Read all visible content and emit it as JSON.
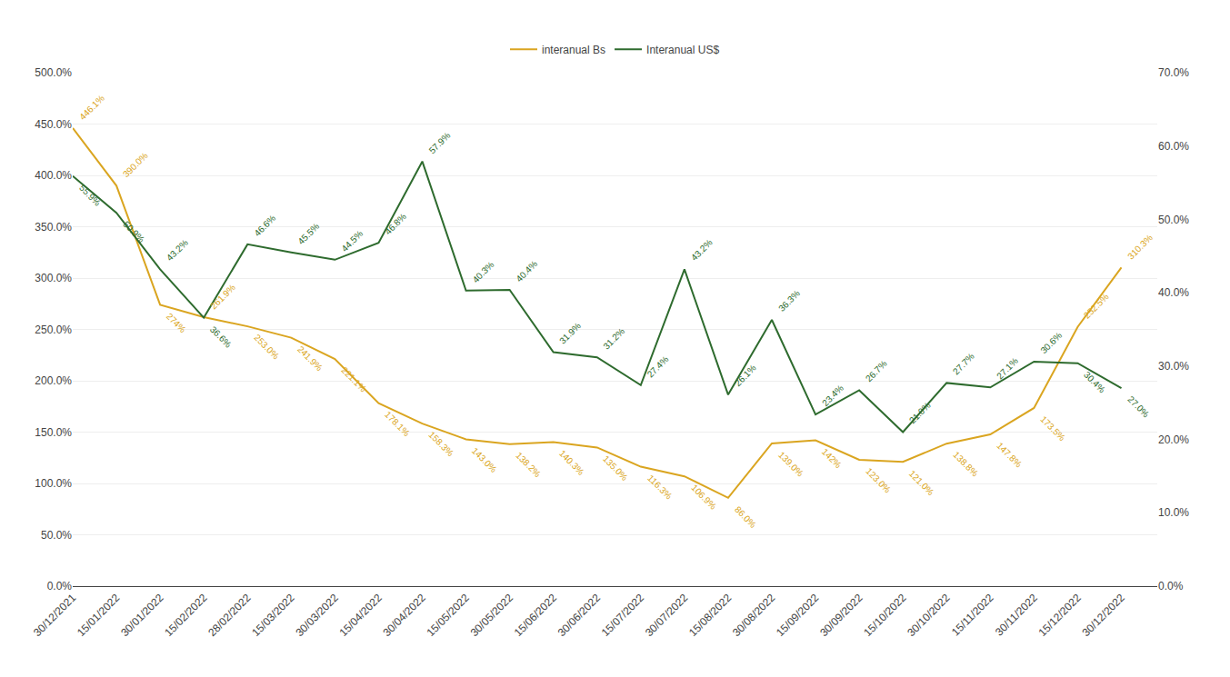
{
  "chart_data": {
    "type": "line",
    "categories": [
      "30/12/2021",
      "15/01/2022",
      "30/01/2022",
      "15/02/2022",
      "28/02/2022",
      "15/03/2022",
      "30/03/2022",
      "15/04/2022",
      "30/04/2022",
      "15/05/2022",
      "30/05/2022",
      "15/06/2022",
      "30/06/2022",
      "15/07/2022",
      "30/07/2022",
      "15/08/2022",
      "30/08/2022",
      "15/09/2022",
      "30/09/2022",
      "15/10/2022",
      "30/10/2022",
      "15/11/2022",
      "30/11/2022",
      "15/12/2022",
      "30/12/2022"
    ],
    "series": [
      {
        "name": "interanual Bs",
        "color": "#DAA520",
        "values": [
          446.1,
          390.0,
          274.0,
          261.9,
          253.0,
          241.9,
          221.1,
          178.1,
          158.3,
          143.0,
          138.2,
          140.3,
          135.0,
          116.3,
          106.9,
          86.0,
          139.0,
          142.0,
          123.0,
          121.0,
          138.8,
          147.8,
          173.5,
          252.5,
          310.3
        ],
        "value_labels": [
          "446.1%",
          "390.0%",
          "274%",
          "261.9%",
          "253.0%",
          "241.9%",
          "221.1%",
          "178.1%",
          "158.3%",
          "143.0%",
          "138.2%",
          "140.3%",
          "135.0%",
          "116.3%",
          "106.9%",
          "86.0%",
          "139.0%",
          "142%",
          "123.0%",
          "121.0%",
          "138.8%",
          "147.8%",
          "173.5%",
          "252.5%",
          "310.3%"
        ]
      },
      {
        "name": "Interanual US$",
        "color": "#2E6B2E",
        "axis": "y2",
        "values": [
          55.9,
          50.9,
          43.2,
          36.6,
          46.6,
          45.5,
          44.5,
          46.8,
          57.9,
          40.3,
          40.4,
          31.9,
          31.2,
          27.4,
          43.2,
          26.1,
          36.3,
          23.4,
          26.7,
          21.0,
          27.7,
          27.1,
          30.6,
          30.4,
          27.0
        ],
        "value_labels": [
          "55.9%",
          "50.9%",
          "43.2%",
          "36.6%",
          "46.6%",
          "45.5%",
          "44.5%",
          "46.8%",
          "57.9%",
          "40.3%",
          "40.4%",
          "31.9%",
          "31.2%",
          "27.4%",
          "43.2%",
          "26.1%",
          "36.3%",
          "23.4%",
          "26.7%",
          "21.0%",
          "27.7%",
          "27.1%",
          "30.6%",
          "30.4%",
          "27.0%"
        ]
      }
    ],
    "ylim": [
      0,
      500
    ],
    "yticks": [
      {
        "value": 0,
        "label": "0.0%"
      },
      {
        "value": 50,
        "label": "50.0%"
      },
      {
        "value": 100,
        "label": "100.0%"
      },
      {
        "value": 150,
        "label": "150.0%"
      },
      {
        "value": 200,
        "label": "200.0%"
      },
      {
        "value": 250,
        "label": "250.0%"
      },
      {
        "value": 300,
        "label": "300.0%"
      },
      {
        "value": 350,
        "label": "350.0%"
      },
      {
        "value": 400,
        "label": "400.0%"
      },
      {
        "value": 450,
        "label": "450.0%"
      },
      {
        "value": 500,
        "label": "500.0%"
      }
    ],
    "y2lim": [
      0,
      70
    ],
    "y2ticks": [
      {
        "value": 0,
        "label": "0.0%"
      },
      {
        "value": 10,
        "label": "10.0%"
      },
      {
        "value": 20,
        "label": "20.0%"
      },
      {
        "value": 30,
        "label": "30.0%"
      },
      {
        "value": 40,
        "label": "40.0%"
      },
      {
        "value": 50,
        "label": "50.0%"
      },
      {
        "value": 60,
        "label": "60.0%"
      },
      {
        "value": 70,
        "label": "70.0%"
      }
    ],
    "grid": true,
    "legend": "top",
    "data_labels": true
  }
}
